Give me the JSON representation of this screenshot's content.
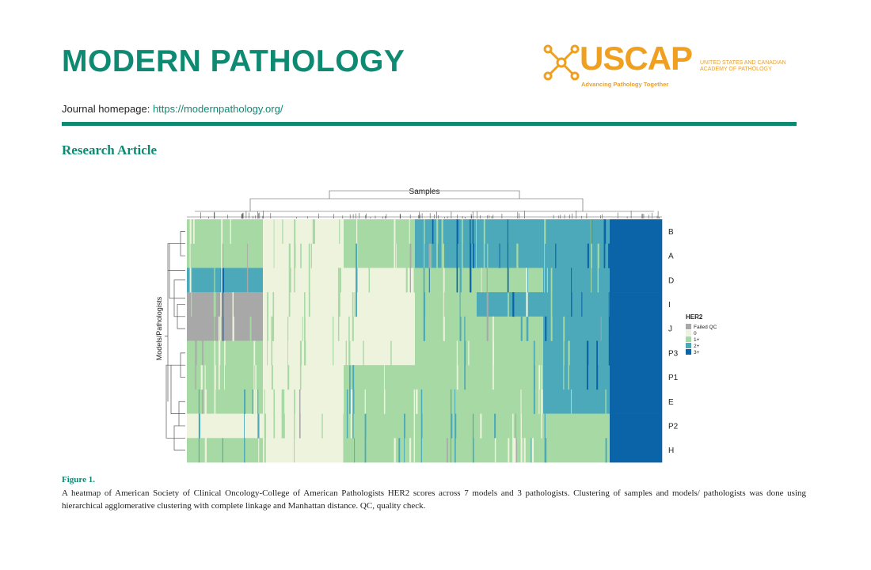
{
  "header": {
    "journal_title": "MODERN PATHOLOGY",
    "logo": {
      "wordmark": "USCAP",
      "org_line1": "UNITED STATES AND CANADIAN",
      "org_line2": "ACADEMY OF PATHOLOGY",
      "tagline": "Advancing Pathology Together"
    },
    "homepage_label": "Journal homepage:",
    "homepage_url": "https://modernpathology.org/",
    "accent_color": "#0e8a73",
    "logo_color": "#f0a020"
  },
  "article_type": "Research Article",
  "figure": {
    "label": "Figure 1.",
    "caption": "A heatmap of American Society of Clinical Oncology-College of American Pathologists HER2 scores across 7 models and 3 pathologists. Clustering of samples and models/ pathologists was done using hierarchical agglomerative clustering with complete linkage and Manhattan distance. QC, quality check."
  },
  "chart_data": {
    "type": "heatmap",
    "title": "",
    "xlabel": "Samples",
    "ylabel": "Models/Pathologists",
    "rows": [
      "B",
      "A",
      "D",
      "I",
      "J",
      "P3",
      "P1",
      "E",
      "P2",
      "H"
    ],
    "legend": {
      "title": "HER2",
      "placement": "right",
      "entries": [
        {
          "label": "Failed QC",
          "color": "#a8a8a8"
        },
        {
          "label": "0",
          "color": "#eef3dd"
        },
        {
          "label": "1+",
          "color": "#a6d9a4"
        },
        {
          "label": "2+",
          "color": "#4ba9b9"
        },
        {
          "label": "3+",
          "color": "#0b64a8"
        }
      ]
    },
    "column_segments": [
      {
        "fraction": 0.16,
        "levels": [
          "1+",
          "1+",
          "2+",
          "Failed QC",
          "Failed QC",
          "1+",
          "1+",
          "1+",
          "0",
          "1+"
        ]
      },
      {
        "fraction": 0.17,
        "levels": [
          "0",
          "0",
          "0",
          "0",
          "0",
          "0",
          "0",
          "0",
          "0",
          "0"
        ]
      },
      {
        "fraction": 0.15,
        "levels": [
          "1+",
          "1+",
          "0",
          "0",
          "0",
          "0",
          "1+",
          "1+",
          "1+",
          "1+"
        ]
      },
      {
        "fraction": 0.13,
        "levels": [
          "2+",
          "2+",
          "1+",
          "1+",
          "1+",
          "1+",
          "1+",
          "1+",
          "1+",
          "1+"
        ]
      },
      {
        "fraction": 0.14,
        "levels": [
          "2+",
          "2+",
          "1+",
          "2+",
          "1+",
          "1+",
          "1+",
          "1+",
          "1+",
          "1+"
        ]
      },
      {
        "fraction": 0.14,
        "levels": [
          "2+",
          "2+",
          "2+",
          "2+",
          "2+",
          "2+",
          "2+",
          "2+",
          "1+",
          "1+"
        ]
      },
      {
        "fraction": 0.11,
        "levels": [
          "3+",
          "3+",
          "3+",
          "3+",
          "3+",
          "3+",
          "3+",
          "3+",
          "3+",
          "3+"
        ]
      }
    ]
  }
}
